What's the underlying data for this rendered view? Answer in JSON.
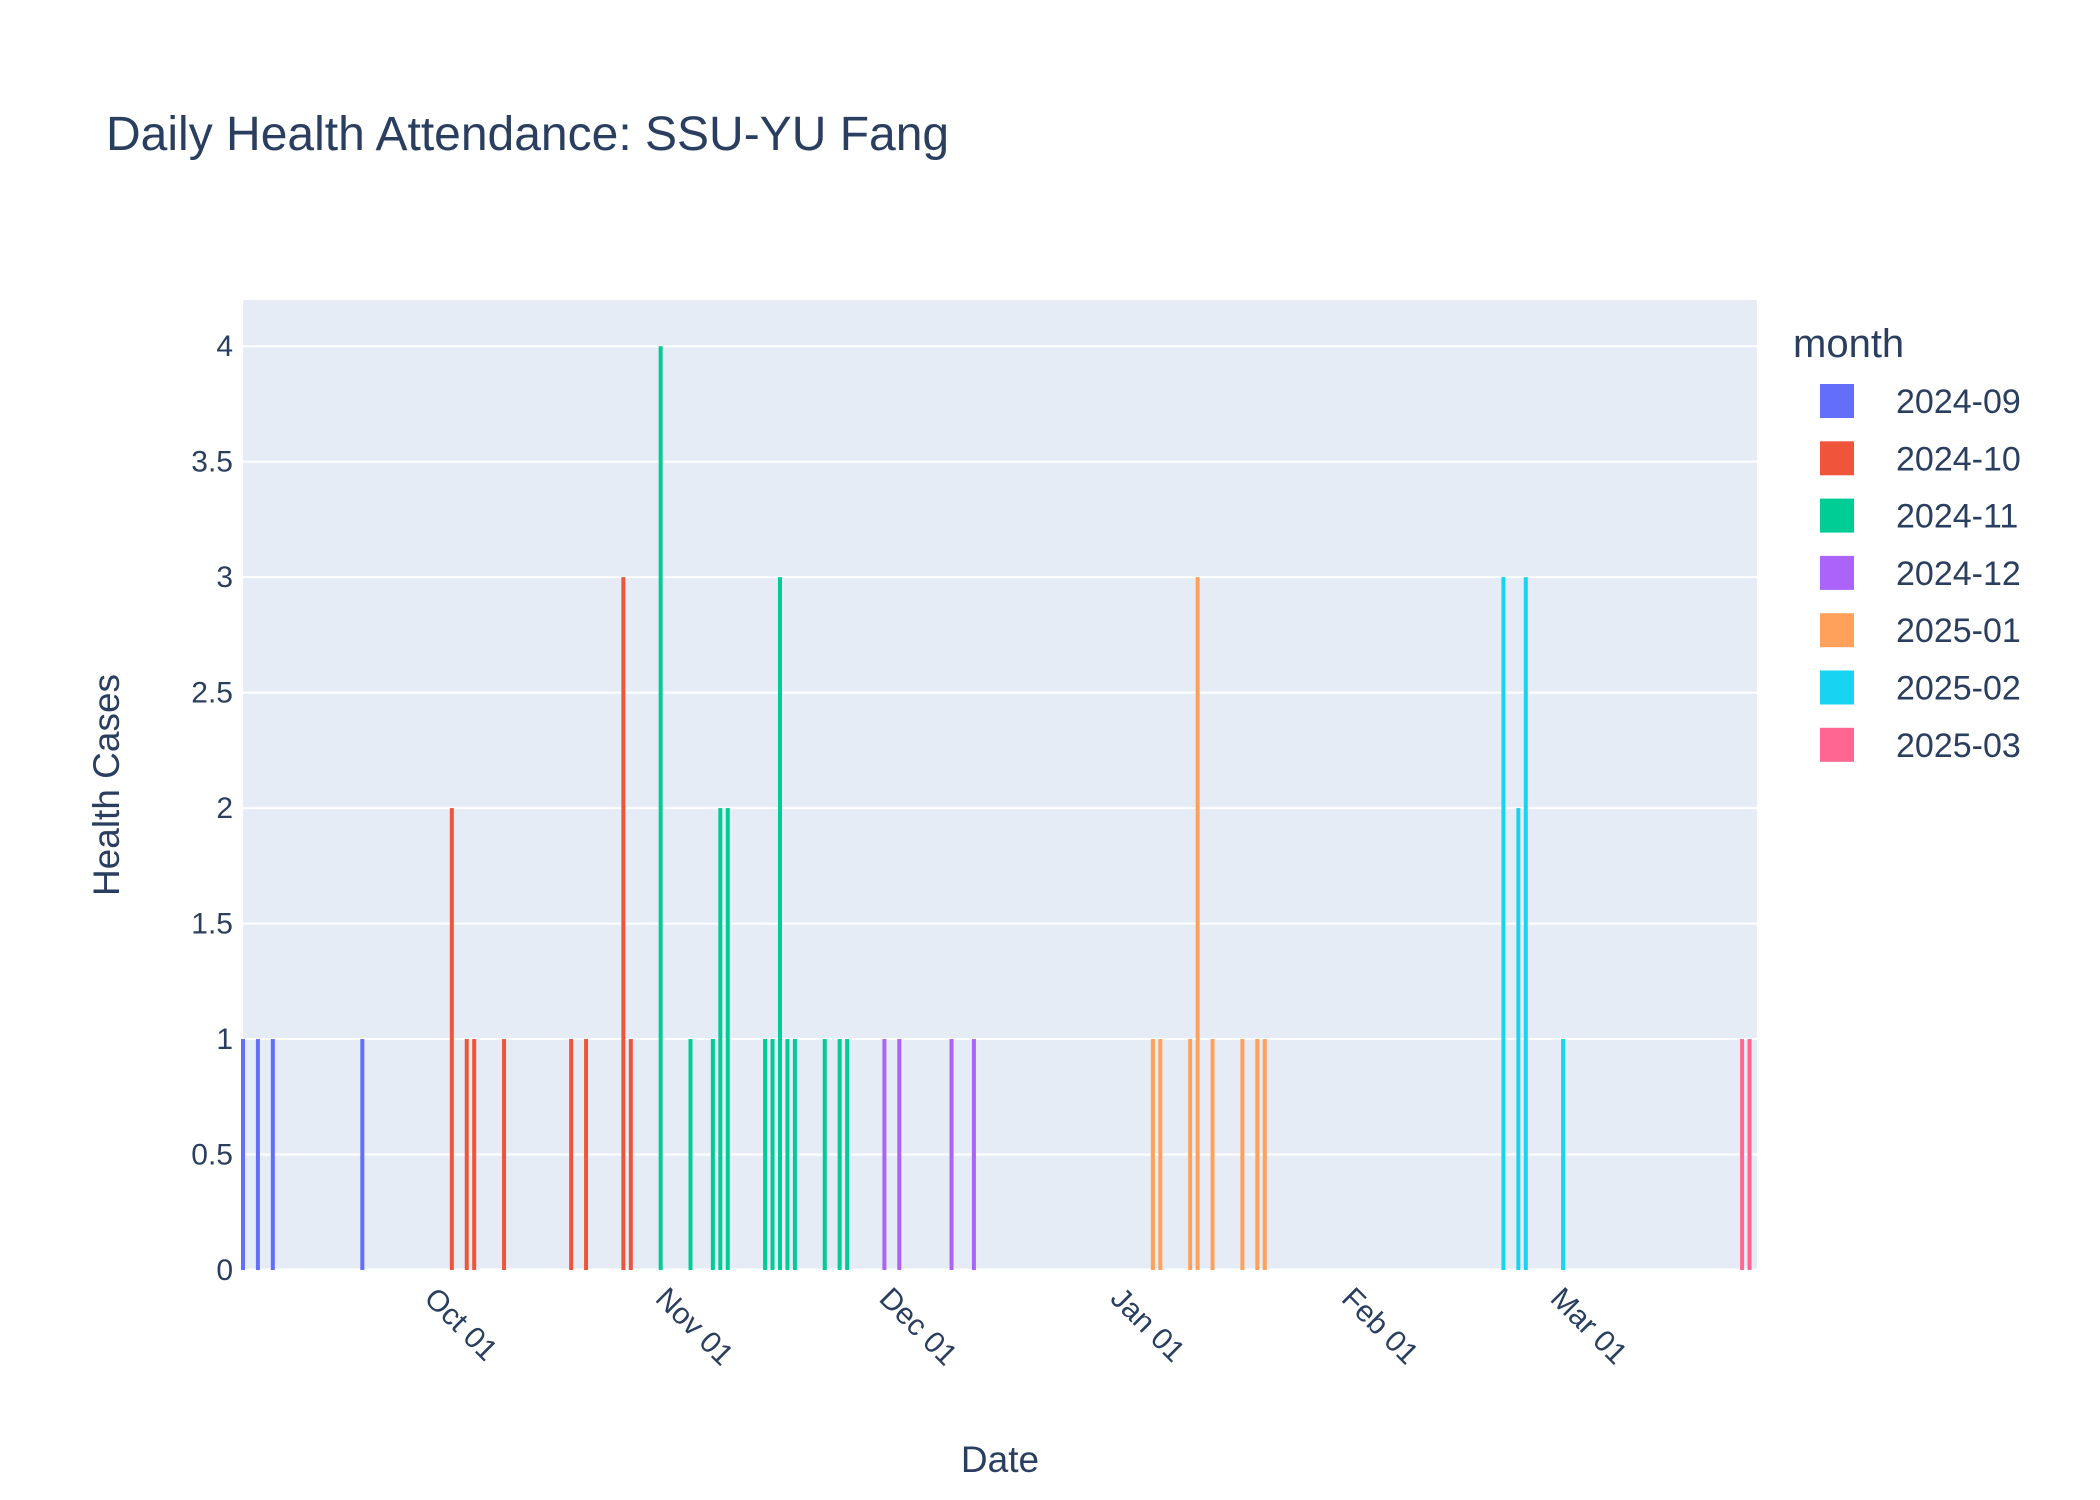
{
  "chart_data": {
    "type": "bar",
    "title": "Daily Health Attendance: SSU-YU Fang",
    "xlabel": "Date",
    "ylabel": "Health Cases",
    "x_range": [
      "2024-09-01",
      "2025-03-23"
    ],
    "ylim": [
      0,
      4.2
    ],
    "y_ticks": [
      "0",
      "0.5",
      "1",
      "1.5",
      "2",
      "2.5",
      "3",
      "3.5",
      "4"
    ],
    "y_tick_values": [
      0,
      0.5,
      1,
      1.5,
      2,
      2.5,
      3,
      3.5,
      4
    ],
    "x_ticks": [
      {
        "date": "2024-10-01",
        "label": "Oct 01"
      },
      {
        "date": "2024-11-01",
        "label": "Nov 01"
      },
      {
        "date": "2024-12-01",
        "label": "Dec 01"
      },
      {
        "date": "2025-01-01",
        "label": "Jan 01"
      },
      {
        "date": "2025-02-01",
        "label": "Feb 01"
      },
      {
        "date": "2025-03-01",
        "label": "Mar 01"
      }
    ],
    "grid": true,
    "legend_title": "month",
    "legend_position": "right",
    "series": [
      {
        "name": "2024-09",
        "color": "#636efa",
        "points": [
          {
            "x": "2024-09-01",
            "y": 1
          },
          {
            "x": "2024-09-03",
            "y": 1
          },
          {
            "x": "2024-09-05",
            "y": 1
          },
          {
            "x": "2024-09-17",
            "y": 1
          }
        ]
      },
      {
        "name": "2024-10",
        "color": "#ef553b",
        "points": [
          {
            "x": "2024-09-29",
            "y": 2
          },
          {
            "x": "2024-10-01",
            "y": 1
          },
          {
            "x": "2024-10-02",
            "y": 1
          },
          {
            "x": "2024-10-06",
            "y": 1
          },
          {
            "x": "2024-10-15",
            "y": 1
          },
          {
            "x": "2024-10-17",
            "y": 1
          },
          {
            "x": "2024-10-22",
            "y": 3
          },
          {
            "x": "2024-10-23",
            "y": 1
          }
        ]
      },
      {
        "name": "2024-11",
        "color": "#00cc96",
        "points": [
          {
            "x": "2024-10-27",
            "y": 4
          },
          {
            "x": "2024-10-31",
            "y": 1
          },
          {
            "x": "2024-11-03",
            "y": 1
          },
          {
            "x": "2024-11-04",
            "y": 2
          },
          {
            "x": "2024-11-05",
            "y": 2
          },
          {
            "x": "2024-11-10",
            "y": 1
          },
          {
            "x": "2024-11-11",
            "y": 1
          },
          {
            "x": "2024-11-12",
            "y": 3
          },
          {
            "x": "2024-11-13",
            "y": 1
          },
          {
            "x": "2024-11-14",
            "y": 1
          },
          {
            "x": "2024-11-18",
            "y": 1
          },
          {
            "x": "2024-11-20",
            "y": 1
          },
          {
            "x": "2024-11-21",
            "y": 1
          }
        ]
      },
      {
        "name": "2024-12",
        "color": "#ab63fa",
        "points": [
          {
            "x": "2024-11-26",
            "y": 1
          },
          {
            "x": "2024-11-28",
            "y": 1
          },
          {
            "x": "2024-12-05",
            "y": 1
          },
          {
            "x": "2024-12-08",
            "y": 1
          }
        ]
      },
      {
        "name": "2025-01",
        "color": "#ffa15a",
        "points": [
          {
            "x": "2025-01-01",
            "y": 1
          },
          {
            "x": "2025-01-02",
            "y": 1
          },
          {
            "x": "2025-01-06",
            "y": 1
          },
          {
            "x": "2025-01-07",
            "y": 3
          },
          {
            "x": "2025-01-09",
            "y": 1
          },
          {
            "x": "2025-01-13",
            "y": 1
          },
          {
            "x": "2025-01-15",
            "y": 1
          },
          {
            "x": "2025-01-16",
            "y": 1
          }
        ]
      },
      {
        "name": "2025-02",
        "color": "#19d3f3",
        "points": [
          {
            "x": "2025-02-17",
            "y": 3
          },
          {
            "x": "2025-02-19",
            "y": 2
          },
          {
            "x": "2025-02-20",
            "y": 3
          },
          {
            "x": "2025-02-25",
            "y": 1
          }
        ]
      },
      {
        "name": "2025-03",
        "color": "#ff6692",
        "points": [
          {
            "x": "2025-03-21",
            "y": 1
          },
          {
            "x": "2025-03-22",
            "y": 1
          }
        ]
      }
    ]
  }
}
